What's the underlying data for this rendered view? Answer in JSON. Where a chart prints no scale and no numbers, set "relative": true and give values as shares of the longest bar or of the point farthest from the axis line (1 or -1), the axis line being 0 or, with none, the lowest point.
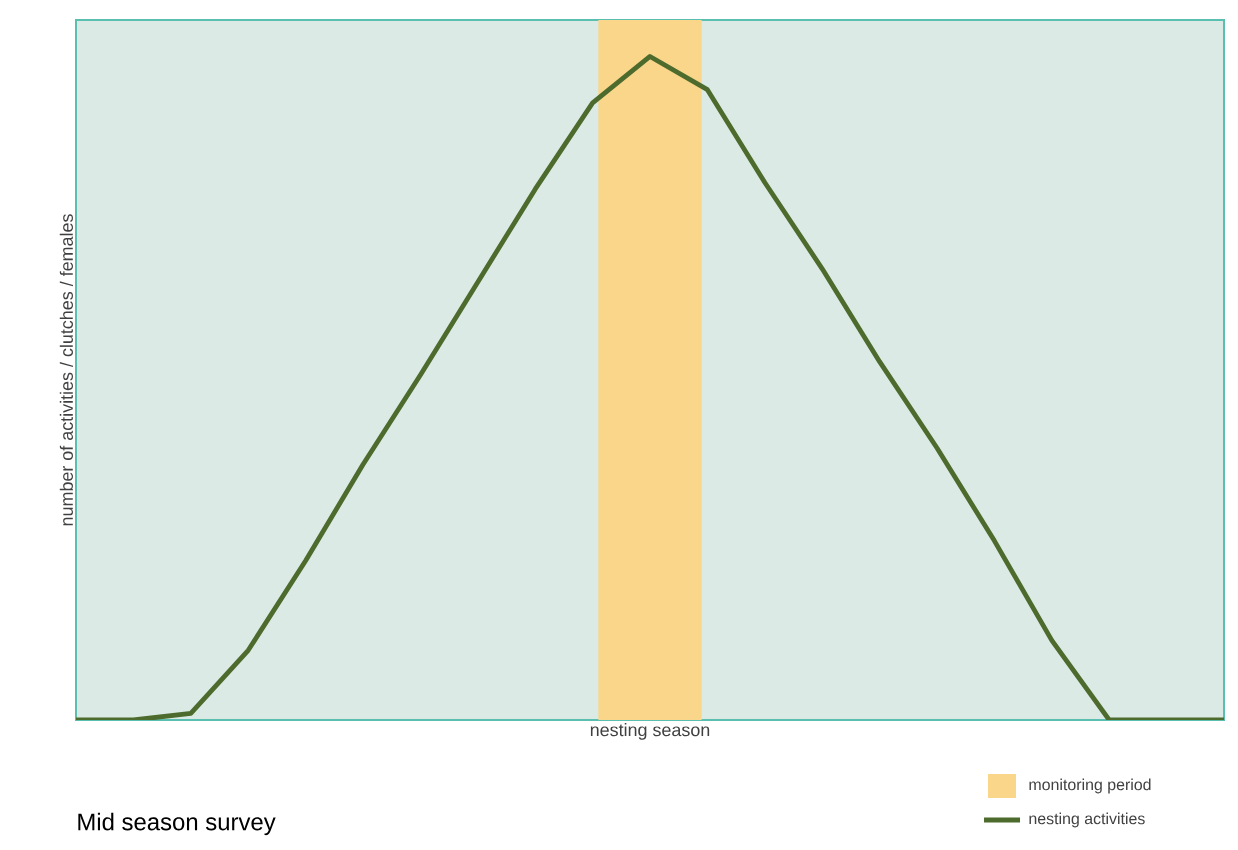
{
  "chart_data": {
    "type": "line",
    "title": "Mid season survey",
    "xlabel": "nesting season",
    "ylabel": "number of activities / clutches / females",
    "relative": true,
    "legend": "bottom right",
    "annotations": [
      "monitoring period"
    ],
    "categories": [
      null,
      null,
      null,
      null,
      null,
      null,
      null,
      null,
      null,
      null,
      null,
      null,
      null,
      null,
      null,
      null,
      null,
      null,
      null,
      null,
      null
    ],
    "series": [
      {
        "name": "nesting activities",
        "color": "#4e6b2e",
        "values": [
          0,
          0,
          0.01,
          0.105,
          0.24,
          0.385,
          0.52,
          0.66,
          0.8,
          0.93,
          1.0,
          0.95,
          0.81,
          0.68,
          0.54,
          0.41,
          0.27,
          0.12,
          0,
          0,
          0
        ]
      }
    ]
  }
}
